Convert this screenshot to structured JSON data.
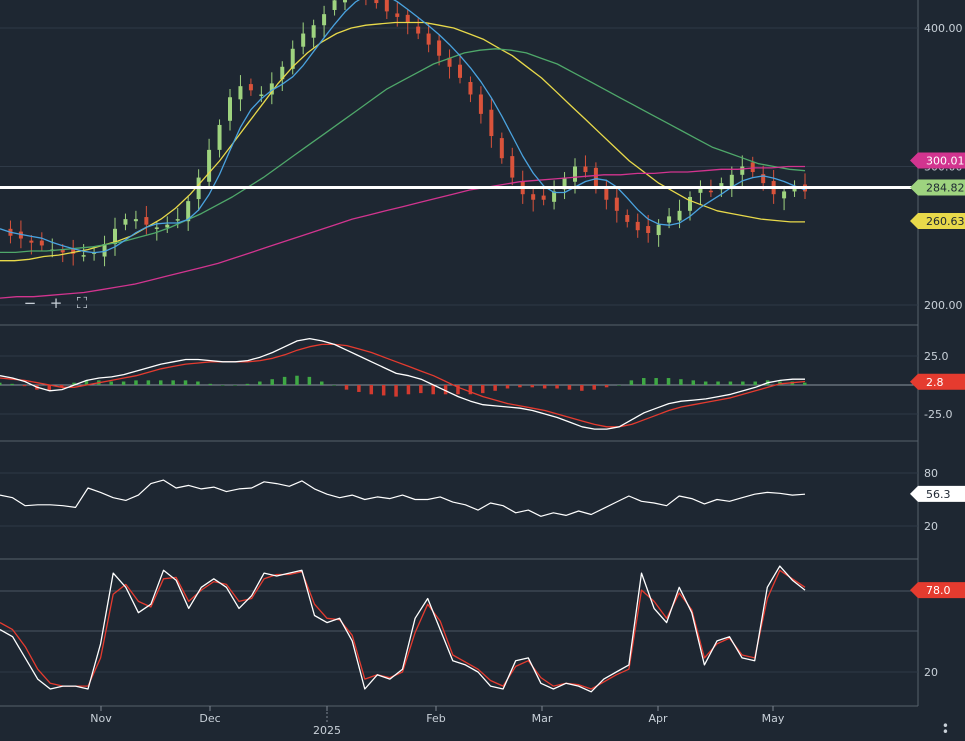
{
  "colors": {
    "background": "#1e2732",
    "grid": "#2f3a47",
    "text": "#c9d1d9",
    "candle_up": "#9ed37f",
    "candle_down": "#d9533b",
    "sma_blue": "#4aa3df",
    "sma_yellow": "#e8d94a",
    "sma_green": "#4fa86a",
    "sma_magenta": "#d2348f",
    "price_line": "#ffffff",
    "macd_line": "#ffffff",
    "macd_signal": "#e53b2f",
    "hist_up": "#3fa845",
    "hist_down": "#d23a2f",
    "rsi_line": "#ffffff",
    "stoch_k": "#ffffff",
    "stoch_d": "#e53b2f"
  },
  "controls": {
    "zoom_out_icon": "minus-icon",
    "zoom_in_icon": "plus-icon",
    "fullscreen_icon": "fullscreen-icon",
    "menu_icon": "vertical-dots-icon"
  },
  "chart_data": [
    {
      "type": "candlestick",
      "panel": "price",
      "y_ticks": [
        "400.00",
        "300.00",
        "200.00"
      ],
      "y_tick_values": [
        400,
        300,
        200
      ],
      "x_ticks": [
        "Nov",
        "Dec",
        "2025",
        "Feb",
        "Mar",
        "Apr",
        "May"
      ],
      "markers": [
        {
          "label": "300.01",
          "value": 300.01,
          "color": "#d2348f"
        },
        {
          "label": "284.82",
          "value": 284.82,
          "color": "#9ed37f"
        },
        {
          "label": "260.63",
          "value": 260.63,
          "color": "#e8d94a"
        }
      ],
      "series": [
        {
          "name": "",
          "values": [
            255,
            250,
            248,
            245,
            243,
            240,
            238,
            237,
            236,
            238,
            244,
            255,
            262,
            262,
            258,
            256,
            258,
            262,
            275,
            292,
            312,
            330,
            350,
            358,
            355,
            352,
            360,
            372,
            385,
            396,
            402,
            410,
            420,
            430,
            432,
            425,
            418,
            412,
            408,
            404,
            396,
            388,
            380,
            372,
            364,
            352,
            338,
            322,
            306,
            292,
            280,
            276,
            276,
            282,
            292,
            300,
            296,
            286,
            276,
            268,
            260,
            254,
            252,
            258,
            264,
            268,
            278,
            284,
            282,
            288,
            294,
            300,
            296,
            288,
            280,
            282,
            284,
            282
          ]
        },
        {
          "name": "",
          "values": [
            232,
            232,
            233,
            235,
            236,
            238,
            240,
            243,
            246,
            250,
            256,
            262,
            270,
            280,
            292,
            304,
            318,
            332,
            346,
            360,
            372,
            382,
            390,
            396,
            400,
            402,
            403,
            404,
            404,
            404,
            402,
            400,
            396,
            392,
            386,
            380,
            372,
            364,
            354,
            344,
            334,
            324,
            314,
            304,
            296,
            288,
            282,
            276,
            272,
            268,
            266,
            264,
            262,
            261,
            260,
            260
          ]
        },
        {
          "name": "",
          "values": [
            238,
            238,
            239,
            239,
            240,
            241,
            242,
            244,
            246,
            249,
            252,
            256,
            261,
            266,
            272,
            278,
            285,
            292,
            300,
            308,
            316,
            324,
            332,
            340,
            348,
            356,
            362,
            368,
            374,
            378,
            382,
            384,
            385,
            384,
            382,
            378,
            374,
            368,
            362,
            356,
            350,
            344,
            338,
            332,
            326,
            320,
            314,
            310,
            306,
            302,
            300,
            298,
            297
          ]
        },
        {
          "name": "",
          "values": [
            205,
            206,
            206,
            207,
            208,
            209,
            211,
            213,
            215,
            218,
            221,
            224,
            227,
            230,
            234,
            238,
            242,
            246,
            250,
            254,
            258,
            262,
            265,
            268,
            271,
            274,
            277,
            280,
            283,
            285,
            287,
            289,
            290,
            291,
            292,
            293,
            294,
            294,
            295,
            295,
            296,
            296,
            297,
            298,
            298,
            299,
            299,
            300,
            300
          ]
        }
      ]
    },
    {
      "type": "bar",
      "panel": "macd",
      "y_ticks": [
        "25.0",
        "-25.0"
      ],
      "y_tick_values": [
        25,
        -25
      ],
      "markers": [
        {
          "label": "2.8",
          "value": 2.8,
          "color": "#e53b2f"
        }
      ],
      "series": [
        {
          "name": "",
          "values": [
            8,
            6,
            3,
            -2,
            -5,
            -4,
            0,
            4,
            6,
            7,
            9,
            12,
            15,
            18,
            20,
            22,
            22,
            21,
            20,
            20,
            21,
            24,
            28,
            33,
            38,
            40,
            38,
            35,
            30,
            25,
            20,
            15,
            10,
            8,
            5,
            0,
            -5,
            -10,
            -14,
            -17,
            -18,
            -19,
            -20,
            -22,
            -25,
            -28,
            -32,
            -36,
            -38,
            -38,
            -36,
            -30,
            -24,
            -20,
            -16,
            -14,
            -13,
            -12,
            -10,
            -8,
            -5,
            -2,
            2,
            4,
            5,
            5
          ]
        },
        {
          "name": "",
          "values": [
            6,
            5,
            4,
            2,
            0,
            -2,
            -2,
            0,
            2,
            4,
            6,
            8,
            11,
            14,
            16,
            18,
            19,
            20,
            20,
            20,
            20,
            21,
            23,
            26,
            30,
            33,
            35,
            35,
            34,
            31,
            28,
            24,
            20,
            16,
            12,
            8,
            3,
            -2,
            -6,
            -10,
            -13,
            -16,
            -18,
            -20,
            -22,
            -25,
            -28,
            -31,
            -34,
            -36,
            -36,
            -34,
            -30,
            -26,
            -22,
            -19,
            -17,
            -15,
            -13,
            -11,
            -8,
            -5,
            -2,
            1,
            2,
            3
          ]
        },
        {
          "name": "",
          "values": [
            2,
            1,
            -1,
            -4,
            -5,
            -2,
            2,
            4,
            4,
            3,
            3,
            4,
            4,
            4,
            4,
            4,
            3,
            1,
            0,
            0,
            1,
            3,
            5,
            7,
            8,
            7,
            3,
            0,
            -4,
            -6,
            -8,
            -9,
            -10,
            -8,
            -7,
            -8,
            -8,
            -8,
            -8,
            -7,
            -5,
            -3,
            -2,
            -2,
            -3,
            -3,
            -4,
            -5,
            -4,
            -2,
            0,
            4,
            6,
            6,
            6,
            5,
            4,
            3,
            3,
            3,
            3,
            3,
            4,
            3,
            3,
            2
          ]
        }
      ]
    },
    {
      "type": "line",
      "panel": "rsi",
      "y_ticks": [
        "80",
        "20"
      ],
      "y_tick_values": [
        80,
        20
      ],
      "markers": [
        {
          "label": "56.3",
          "value": 56.3,
          "color": "#ffffff"
        }
      ],
      "series": [
        {
          "name": "",
          "values": [
            55,
            52,
            43,
            44,
            44,
            43,
            41,
            63,
            58,
            52,
            49,
            55,
            68,
            72,
            63,
            66,
            62,
            64,
            59,
            62,
            63,
            70,
            68,
            65,
            71,
            62,
            56,
            52,
            55,
            50,
            53,
            51,
            55,
            50,
            50,
            53,
            47,
            44,
            38,
            46,
            43,
            35,
            38,
            31,
            35,
            32,
            37,
            33,
            40,
            47,
            54,
            48,
            46,
            43,
            54,
            51,
            45,
            50,
            48,
            52,
            56,
            58,
            57,
            55,
            56
          ]
        }
      ]
    },
    {
      "type": "line",
      "panel": "stochastic",
      "y_ticks": [
        "20"
      ],
      "y_tick_values": [
        20
      ],
      "markers": [
        {
          "label": "78.0",
          "value": 78.0,
          "color": "#e53b2f"
        }
      ],
      "series": [
        {
          "name": "",
          "values": [
            50,
            45,
            30,
            15,
            8,
            10,
            10,
            8,
            40,
            90,
            80,
            62,
            68,
            92,
            85,
            65,
            80,
            86,
            80,
            65,
            74,
            90,
            88,
            90,
            92,
            60,
            55,
            58,
            42,
            8,
            18,
            15,
            22,
            58,
            72,
            50,
            28,
            25,
            20,
            10,
            8,
            28,
            30,
            12,
            8,
            12,
            10,
            6,
            15,
            20,
            25,
            90,
            65,
            55,
            80,
            62,
            25,
            42,
            45,
            30,
            28,
            80,
            95,
            85,
            78
          ]
        },
        {
          "name": "",
          "values": [
            55,
            50,
            38,
            22,
            12,
            10,
            10,
            10,
            30,
            75,
            82,
            70,
            66,
            86,
            87,
            70,
            78,
            84,
            82,
            70,
            72,
            86,
            89,
            89,
            91,
            68,
            58,
            57,
            46,
            15,
            18,
            16,
            20,
            48,
            68,
            56,
            32,
            27,
            22,
            14,
            10,
            24,
            28,
            16,
            10,
            12,
            11,
            8,
            13,
            18,
            22,
            78,
            70,
            58,
            76,
            64,
            30,
            40,
            44,
            32,
            30,
            72,
            92,
            86,
            80
          ]
        }
      ]
    }
  ]
}
